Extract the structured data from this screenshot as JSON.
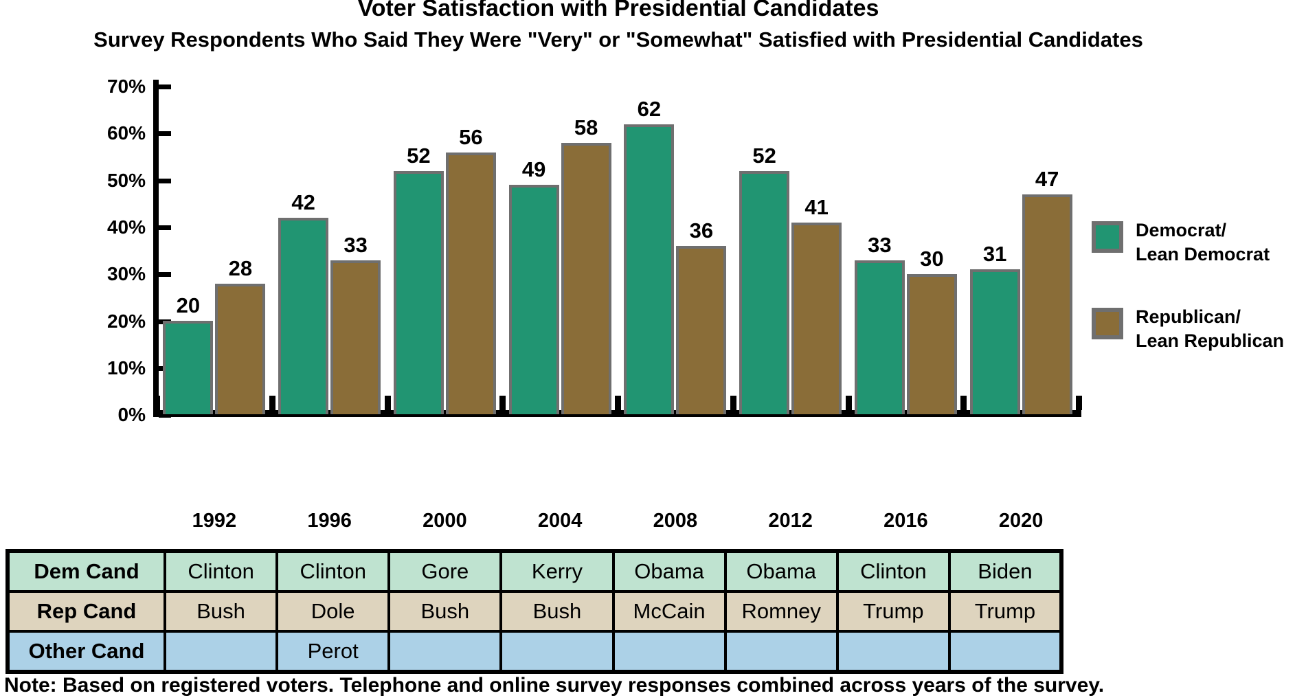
{
  "title": "Voter Satisfaction with Presidential Candidates",
  "subtitle": "Survey Respondents Who Said They Were \"Very\" or \"Somewhat\" Satisfied with Presidential Candidates",
  "note": "Note: Based on registered voters. Telephone and online survey responses combined across years of the survey.",
  "colors": {
    "dem_bar": "#219572",
    "rep_bar": "#8A6D38",
    "bar_border": "#6F6F6F",
    "axis": "#000000",
    "table_dem_row": "#BFE3D0",
    "table_rep_row": "#DED4BE",
    "table_other_row": "#ACD1E7"
  },
  "chart_data": {
    "type": "bar",
    "title": "Voter Satisfaction with Presidential Candidates",
    "subtitle": "Survey Respondents Who Said They Were \"Very\" or \"Somewhat\" Satisfied with Presidential Candidates",
    "categories": [
      "1992",
      "1996",
      "2000",
      "2004",
      "2008",
      "2012",
      "2016",
      "2020"
    ],
    "series": [
      {
        "name": "Democrat/Lean Democrat",
        "color": "#219572",
        "values": [
          20,
          42,
          52,
          49,
          62,
          52,
          33,
          31
        ]
      },
      {
        "name": "Republican/Lean Republican",
        "color": "#8A6D38",
        "values": [
          28,
          33,
          56,
          58,
          36,
          41,
          30,
          47
        ]
      }
    ],
    "xlabel": "",
    "ylabel": "",
    "y_tick_labels": [
      "70%",
      "60%",
      "50%",
      "40%",
      "30%",
      "20%",
      "10%",
      "0%"
    ],
    "ylim": [
      0,
      70
    ],
    "grid": false,
    "legend_position": "right",
    "data_labels_shown": true
  },
  "legend": {
    "items": [
      {
        "line1": "Democrat/",
        "line2": "Lean Democrat",
        "color": "#219572"
      },
      {
        "line1": "Republican/",
        "line2": "Lean Republican",
        "color": "#8A6D38"
      }
    ]
  },
  "table": {
    "rows": [
      {
        "header": "Dem Cand",
        "bg": "#BFE3D0",
        "cells": [
          "Clinton",
          "Clinton",
          "Gore",
          "Kerry",
          "Obama",
          "Obama",
          "Clinton",
          "Biden"
        ]
      },
      {
        "header": "Rep Cand",
        "bg": "#DED4BE",
        "cells": [
          "Bush",
          "Dole",
          "Bush",
          "Bush",
          "McCain",
          "Romney",
          "Trump",
          "Trump"
        ]
      },
      {
        "header": "Other Cand",
        "bg": "#ACD1E7",
        "cells": [
          "",
          "Perot",
          "",
          "",
          "",
          "",
          "",
          ""
        ]
      }
    ]
  }
}
